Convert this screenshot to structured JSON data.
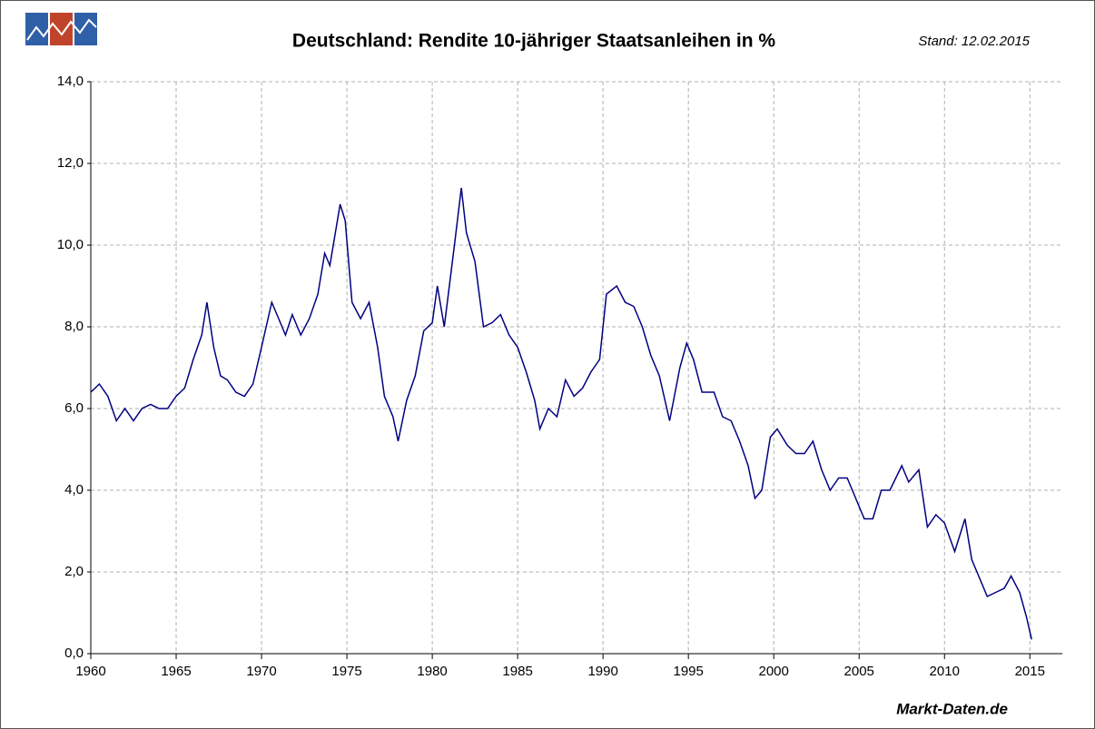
{
  "chart_data": {
    "type": "line",
    "title": "Deutschland: Rendite 10-jähriger Staatsanleihen in %",
    "subtitle": "Stand: 12.02.2015",
    "source": "Markt-Daten.de",
    "x": [
      1960.0,
      1960.5,
      1961.0,
      1961.5,
      1962.0,
      1962.5,
      1963.0,
      1963.5,
      1964.0,
      1964.5,
      1965.0,
      1965.5,
      1966.0,
      1966.5,
      1966.8,
      1967.2,
      1967.6,
      1968.0,
      1968.5,
      1969.0,
      1969.5,
      1970.0,
      1970.6,
      1971.0,
      1971.4,
      1971.8,
      1972.3,
      1972.8,
      1973.3,
      1973.7,
      1974.0,
      1974.6,
      1974.9,
      1975.3,
      1975.8,
      1976.3,
      1976.8,
      1977.2,
      1977.7,
      1978.0,
      1978.5,
      1979.0,
      1979.5,
      1980.0,
      1980.3,
      1980.7,
      1981.3,
      1981.7,
      1982.0,
      1982.5,
      1983.0,
      1983.5,
      1984.0,
      1984.5,
      1985.0,
      1985.5,
      1986.0,
      1986.3,
      1986.8,
      1987.3,
      1987.8,
      1988.3,
      1988.8,
      1989.3,
      1989.8,
      1990.2,
      1990.8,
      1991.3,
      1991.8,
      1992.3,
      1992.8,
      1993.3,
      1993.9,
      1994.5,
      1994.9,
      1995.3,
      1995.8,
      1996.5,
      1997.0,
      1997.5,
      1998.0,
      1998.5,
      1998.9,
      1999.3,
      1999.8,
      2000.2,
      2000.8,
      2001.3,
      2001.8,
      2002.3,
      2002.8,
      2003.3,
      2003.8,
      2004.3,
      2004.8,
      2005.3,
      2005.8,
      2006.3,
      2006.8,
      2007.5,
      2007.9,
      2008.5,
      2009.0,
      2009.5,
      2010.0,
      2010.6,
      2011.2,
      2011.6,
      2012.0,
      2012.5,
      2013.0,
      2013.5,
      2013.9,
      2014.4,
      2014.8,
      2015.1
    ],
    "series": [
      {
        "name": "Rendite",
        "color": "#000080",
        "values": [
          6.4,
          6.6,
          6.3,
          5.7,
          6.0,
          5.7,
          6.0,
          6.1,
          6.0,
          6.0,
          6.3,
          6.5,
          7.2,
          7.8,
          8.6,
          7.5,
          6.8,
          6.7,
          6.4,
          6.3,
          6.6,
          7.5,
          8.6,
          8.2,
          7.8,
          8.3,
          7.8,
          8.2,
          8.8,
          9.8,
          9.5,
          11.0,
          10.6,
          8.6,
          8.2,
          8.6,
          7.5,
          6.3,
          5.8,
          5.2,
          6.2,
          6.8,
          7.9,
          8.1,
          9.0,
          8.0,
          10.0,
          11.4,
          10.3,
          9.6,
          8.0,
          8.1,
          8.3,
          7.8,
          7.5,
          6.9,
          6.2,
          5.5,
          6.0,
          5.8,
          6.7,
          6.3,
          6.5,
          6.9,
          7.2,
          8.8,
          9.0,
          8.6,
          8.5,
          8.0,
          7.3,
          6.8,
          5.7,
          7.0,
          7.6,
          7.2,
          6.4,
          6.4,
          5.8,
          5.7,
          5.2,
          4.6,
          3.8,
          4.0,
          5.3,
          5.5,
          5.1,
          4.9,
          4.9,
          5.2,
          4.5,
          4.0,
          4.3,
          4.3,
          3.8,
          3.3,
          3.3,
          4.0,
          4.0,
          4.6,
          4.2,
          4.5,
          3.1,
          3.4,
          3.2,
          2.5,
          3.3,
          2.3,
          1.9,
          1.4,
          1.5,
          1.6,
          1.9,
          1.5,
          0.9,
          0.35
        ]
      }
    ],
    "xlim": [
      1960,
      2016.9
    ],
    "xticks": [
      1960,
      1965,
      1970,
      1975,
      1980,
      1985,
      1990,
      1995,
      2000,
      2005,
      2010,
      2015
    ],
    "ylim": [
      0,
      14
    ],
    "yticks": [
      {
        "value": 0,
        "label": "0,0"
      },
      {
        "value": 2,
        "label": "2,0"
      },
      {
        "value": 4,
        "label": "4,0"
      },
      {
        "value": 6,
        "label": "6,0"
      },
      {
        "value": 8,
        "label": "8,0"
      },
      {
        "value": 10,
        "label": "10,0"
      },
      {
        "value": 12,
        "label": "12,0"
      },
      {
        "value": 14,
        "label": "14,0"
      }
    ],
    "grid": true
  }
}
